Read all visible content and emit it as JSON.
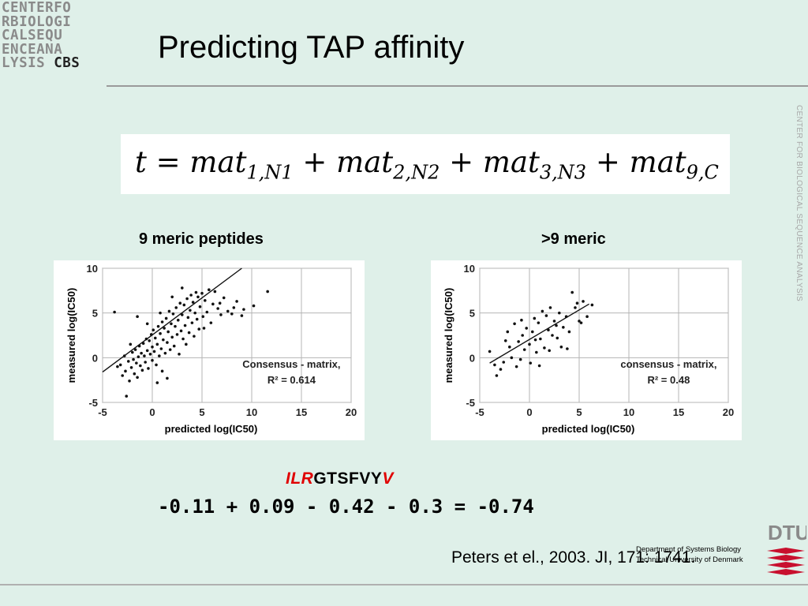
{
  "header": {
    "logo_lines": [
      "CENTERFO",
      "RBIOLOGI",
      "CALSEQU",
      "ENCEANA",
      "LYSIS"
    ],
    "logo_cbs": "CBS",
    "title": "Predicting TAP affinity",
    "side_text": "CENTER FOR BIOLOGICAL SEQUENCE ANALYSIS"
  },
  "formula": {
    "lhs": "t",
    "eq": "=",
    "base": "mat",
    "plus": "+",
    "subscripts": [
      "1,N1",
      "2,N2",
      "3,N3",
      "9,C"
    ]
  },
  "plots": {
    "left_label": "9 meric peptides",
    "right_label": ">9 meric"
  },
  "chart_data": [
    {
      "type": "scatter",
      "title": "9 meric peptides",
      "xlabel": "predicted log(IC50)",
      "ylabel": "measured log(IC50)",
      "xlim": [
        -5,
        20
      ],
      "ylim": [
        -5,
        10
      ],
      "xticks": [
        -5,
        0,
        5,
        10,
        15,
        20
      ],
      "yticks": [
        -5,
        0,
        5,
        10
      ],
      "grid": true,
      "annotation": [
        "Consensus - matrix,",
        "R² = 0.614"
      ],
      "fit_line": [
        [
          -5,
          -1.6
        ],
        [
          9,
          10
        ]
      ],
      "points": [
        [
          -3.5,
          -1.0
        ],
        [
          -3.2,
          -0.8
        ],
        [
          -3.0,
          -2.0
        ],
        [
          -2.8,
          0.2
        ],
        [
          -2.7,
          -1.5
        ],
        [
          -2.6,
          -4.3
        ],
        [
          -2.4,
          -0.4
        ],
        [
          -2.3,
          -2.6
        ],
        [
          -2.1,
          -1.1
        ],
        [
          -2.0,
          0.6
        ],
        [
          -1.9,
          -0.2
        ],
        [
          -1.8,
          -1.8
        ],
        [
          -1.7,
          0.9
        ],
        [
          -1.6,
          -0.6
        ],
        [
          -1.5,
          -2.2
        ],
        [
          -1.4,
          0.1
        ],
        [
          -1.3,
          1.3
        ],
        [
          -1.2,
          -0.9
        ],
        [
          -1.1,
          0.5
        ],
        [
          -1.0,
          -1.4
        ],
        [
          -0.9,
          1.6
        ],
        [
          -0.8,
          0.2
        ],
        [
          -0.7,
          -0.5
        ],
        [
          -0.6,
          2.1
        ],
        [
          -0.5,
          0.8
        ],
        [
          -0.4,
          -1.2
        ],
        [
          -0.3,
          1.9
        ],
        [
          -0.2,
          0.4
        ],
        [
          -0.1,
          2.6
        ],
        [
          0.0,
          -0.3
        ],
        [
          0.0,
          1.2
        ],
        [
          0.1,
          3.1
        ],
        [
          0.2,
          0.7
        ],
        [
          0.3,
          2.2
        ],
        [
          0.4,
          -0.8
        ],
        [
          0.5,
          1.5
        ],
        [
          0.6,
          3.5
        ],
        [
          0.7,
          0.2
        ],
        [
          0.8,
          2.7
        ],
        [
          0.9,
          1.0
        ],
        [
          1.0,
          4.0
        ],
        [
          1.0,
          -1.5
        ],
        [
          1.1,
          2.0
        ],
        [
          1.2,
          3.3
        ],
        [
          1.3,
          0.5
        ],
        [
          1.4,
          4.4
        ],
        [
          1.5,
          1.7
        ],
        [
          1.6,
          2.9
        ],
        [
          1.7,
          5.2
        ],
        [
          1.8,
          0.9
        ],
        [
          1.9,
          3.8
        ],
        [
          2.0,
          2.3
        ],
        [
          2.1,
          4.9
        ],
        [
          2.2,
          1.3
        ],
        [
          2.3,
          3.5
        ],
        [
          2.4,
          5.6
        ],
        [
          2.5,
          2.6
        ],
        [
          2.6,
          4.2
        ],
        [
          2.7,
          0.4
        ],
        [
          2.8,
          6.1
        ],
        [
          2.9,
          3.0
        ],
        [
          3.0,
          4.8
        ],
        [
          3.1,
          2.1
        ],
        [
          3.2,
          5.9
        ],
        [
          3.3,
          3.6
        ],
        [
          3.4,
          1.5
        ],
        [
          3.5,
          6.6
        ],
        [
          3.6,
          4.5
        ],
        [
          3.7,
          2.8
        ],
        [
          3.8,
          5.3
        ],
        [
          3.9,
          7.0
        ],
        [
          4.0,
          3.9
        ],
        [
          4.1,
          6.2
        ],
        [
          4.2,
          2.4
        ],
        [
          4.3,
          5.0
        ],
        [
          4.4,
          7.3
        ],
        [
          4.5,
          4.3
        ],
        [
          4.6,
          6.8
        ],
        [
          4.7,
          3.2
        ],
        [
          4.8,
          5.7
        ],
        [
          5.0,
          7.2
        ],
        [
          5.1,
          4.6
        ],
        [
          5.3,
          6.4
        ],
        [
          5.5,
          5.1
        ],
        [
          5.7,
          7.6
        ],
        [
          5.9,
          3.9
        ],
        [
          6.1,
          6.0
        ],
        [
          6.3,
          7.4
        ],
        [
          6.6,
          5.5
        ],
        [
          6.9,
          4.8
        ],
        [
          7.2,
          6.7
        ],
        [
          7.6,
          5.2
        ],
        [
          8.0,
          4.9
        ],
        [
          8.5,
          6.3
        ],
        [
          9.2,
          5.4
        ],
        [
          10.2,
          5.8
        ],
        [
          11.6,
          7.4
        ],
        [
          9.0,
          4.7
        ],
        [
          -3.8,
          5.1
        ],
        [
          -1.5,
          4.6
        ],
        [
          0.5,
          -2.8
        ],
        [
          1.5,
          -2.3
        ],
        [
          -2.2,
          1.5
        ],
        [
          2.0,
          6.8
        ],
        [
          3.0,
          7.8
        ],
        [
          6.8,
          6.1
        ],
        [
          8.2,
          5.6
        ],
        [
          5.2,
          3.3
        ],
        [
          -0.5,
          3.8
        ],
        [
          0.8,
          5.0
        ]
      ]
    },
    {
      "type": "scatter",
      "title": ">9 meric",
      "xlabel": "predicted log(IC50)",
      "ylabel": "measured log(IC50)",
      "xlim": [
        -5,
        20
      ],
      "ylim": [
        -5,
        10
      ],
      "xticks": [
        -5,
        0,
        5,
        10,
        15,
        20
      ],
      "yticks": [
        -5,
        0,
        5,
        10
      ],
      "grid": true,
      "annotation": [
        "consensus - matrix,",
        "R² = 0.48"
      ],
      "fit_line": [
        [
          -4,
          -0.6
        ],
        [
          6,
          6.0
        ]
      ],
      "points": [
        [
          -4.0,
          0.7
        ],
        [
          -3.5,
          -0.8
        ],
        [
          -3.3,
          -2.0
        ],
        [
          -2.9,
          -1.3
        ],
        [
          -2.6,
          -0.5
        ],
        [
          -2.2,
          2.9
        ],
        [
          -2.0,
          1.2
        ],
        [
          -1.8,
          0.0
        ],
        [
          -1.5,
          3.8
        ],
        [
          -1.3,
          -1.0
        ],
        [
          -1.1,
          1.8
        ],
        [
          -0.9,
          -0.2
        ],
        [
          -0.7,
          2.5
        ],
        [
          -0.5,
          0.9
        ],
        [
          -0.3,
          3.3
        ],
        [
          0.0,
          1.5
        ],
        [
          0.1,
          -0.6
        ],
        [
          0.3,
          2.9
        ],
        [
          0.5,
          4.4
        ],
        [
          0.7,
          0.6
        ],
        [
          0.9,
          3.9
        ],
        [
          1.1,
          2.1
        ],
        [
          1.3,
          5.2
        ],
        [
          1.5,
          1.1
        ],
        [
          1.7,
          4.7
        ],
        [
          1.9,
          3.1
        ],
        [
          2.1,
          5.6
        ],
        [
          2.3,
          2.5
        ],
        [
          2.5,
          4.1
        ],
        [
          2.7,
          3.6
        ],
        [
          3.0,
          5.0
        ],
        [
          3.2,
          1.2
        ],
        [
          3.4,
          3.4
        ],
        [
          3.7,
          4.6
        ],
        [
          4.0,
          2.9
        ],
        [
          4.3,
          7.3
        ],
        [
          4.6,
          5.6
        ],
        [
          5.0,
          4.1
        ],
        [
          5.4,
          6.3
        ],
        [
          5.8,
          4.6
        ],
        [
          6.3,
          5.9
        ],
        [
          -0.8,
          4.2
        ],
        [
          2.0,
          0.8
        ],
        [
          3.8,
          1.0
        ],
        [
          1.0,
          -0.9
        ],
        [
          -2.4,
          1.9
        ],
        [
          4.8,
          6.1
        ],
        [
          5.2,
          3.9
        ],
        [
          2.8,
          2.2
        ],
        [
          0.6,
          2.0
        ]
      ]
    }
  ],
  "sequence": {
    "prefix": "ILR",
    "middle": "GTSFVY",
    "suffix": "V"
  },
  "equation": "-0.11 + 0.09 - 0.42 - 0.3 = -0.74",
  "citation": "Peters et el., 2003. JI, 171: 1741.",
  "footer": {
    "dept_line1": "Department of Systems Biology",
    "dept_line2": "Technical University of Denmark",
    "dtu": "DTU",
    "dtu_red": "#c8102e",
    "dtu_gray": "#8a8a8a"
  }
}
